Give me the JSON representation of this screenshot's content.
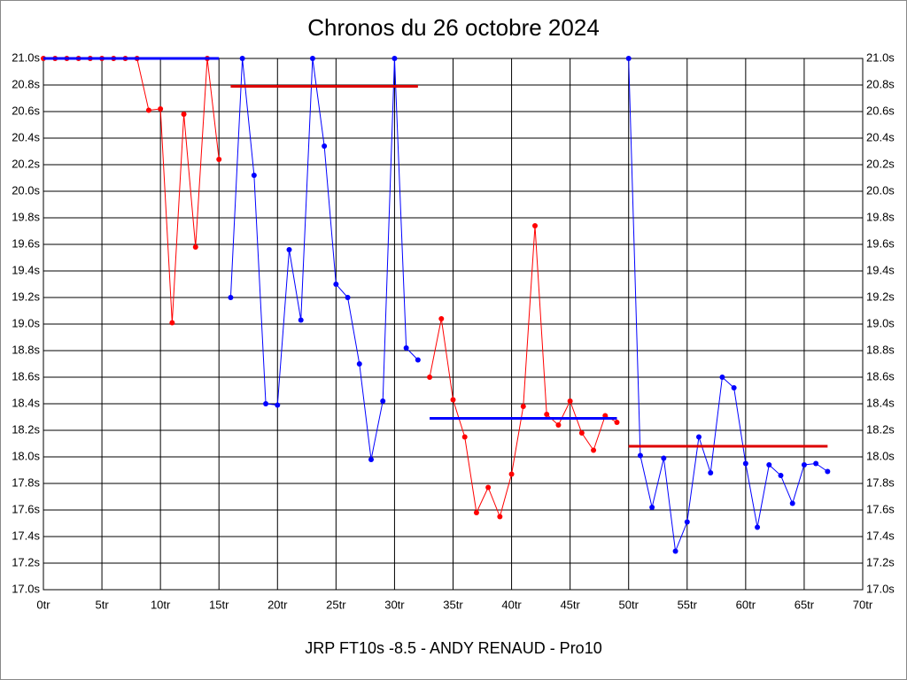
{
  "chart_data": {
    "type": "line",
    "title": "Chronos du 26 octobre 2024",
    "xlabel": "JRP FT10s -8.5 - ANDY RENAUD - Pro10",
    "xlim": [
      0,
      70
    ],
    "xticks": [
      {
        "value": 0,
        "label": "0tr"
      },
      {
        "value": 5,
        "label": "5tr"
      },
      {
        "value": 10,
        "label": "10tr"
      },
      {
        "value": 15,
        "label": "15tr"
      },
      {
        "value": 20,
        "label": "20tr"
      },
      {
        "value": 25,
        "label": "25tr"
      },
      {
        "value": 30,
        "label": "30tr"
      },
      {
        "value": 35,
        "label": "35tr"
      },
      {
        "value": 40,
        "label": "40tr"
      },
      {
        "value": 45,
        "label": "45tr"
      },
      {
        "value": 50,
        "label": "50tr"
      },
      {
        "value": 55,
        "label": "55tr"
      },
      {
        "value": 60,
        "label": "60tr"
      },
      {
        "value": 65,
        "label": "65tr"
      },
      {
        "value": 70,
        "label": "70tr"
      }
    ],
    "ylim": [
      17.0,
      21.0
    ],
    "yticks": [
      {
        "value": 17.0,
        "label": "17.0s"
      },
      {
        "value": 17.2,
        "label": "17.2s"
      },
      {
        "value": 17.4,
        "label": "17.4s"
      },
      {
        "value": 17.6,
        "label": "17.6s"
      },
      {
        "value": 17.8,
        "label": "17.8s"
      },
      {
        "value": 18.0,
        "label": "18.0s"
      },
      {
        "value": 18.2,
        "label": "18.2s"
      },
      {
        "value": 18.4,
        "label": "18.4s"
      },
      {
        "value": 18.6,
        "label": "18.6s"
      },
      {
        "value": 18.8,
        "label": "18.8s"
      },
      {
        "value": 19.0,
        "label": "19.0s"
      },
      {
        "value": 19.2,
        "label": "19.2s"
      },
      {
        "value": 19.4,
        "label": "19.4s"
      },
      {
        "value": 19.6,
        "label": "19.6s"
      },
      {
        "value": 19.8,
        "label": "19.8s"
      },
      {
        "value": 20.0,
        "label": "20.0s"
      },
      {
        "value": 20.2,
        "label": "20.2s"
      },
      {
        "value": 20.4,
        "label": "20.4s"
      },
      {
        "value": 20.6,
        "label": "20.6s"
      },
      {
        "value": 20.8,
        "label": "20.8s"
      },
      {
        "value": 21.0,
        "label": "21.0s"
      }
    ],
    "grid": true,
    "series": [
      {
        "color": "#ff0000",
        "x": [
          0,
          1,
          2,
          3,
          4,
          5,
          6,
          7,
          8,
          9,
          10,
          11,
          12,
          13,
          14,
          15
        ],
        "values": [
          21.0,
          21.0,
          21.0,
          21.0,
          21.0,
          21.0,
          21.0,
          21.0,
          21.0,
          20.61,
          20.62,
          19.01,
          20.58,
          19.58,
          21.0,
          20.24
        ]
      },
      {
        "color": "#0000ff",
        "x": [
          16,
          17,
          18,
          19,
          20,
          21,
          22,
          23,
          24,
          25,
          26,
          27,
          28,
          29,
          30,
          31,
          32
        ],
        "values": [
          19.2,
          21.0,
          20.12,
          18.4,
          18.39,
          19.56,
          19.03,
          21.0,
          20.34,
          19.3,
          19.2,
          18.7,
          17.98,
          18.42,
          21.0,
          18.82,
          18.73
        ]
      },
      {
        "color": "#ff0000",
        "x": [
          33,
          34,
          35,
          36,
          37,
          38,
          39,
          40,
          41,
          42,
          43,
          44,
          45,
          46,
          47,
          48,
          49
        ],
        "values": [
          18.6,
          19.04,
          18.43,
          18.15,
          17.58,
          17.77,
          17.55,
          17.87,
          18.38,
          19.74,
          18.32,
          18.24,
          18.42,
          18.18,
          18.05,
          18.31,
          18.26
        ]
      },
      {
        "color": "#0000ff",
        "x": [
          50,
          51,
          52,
          53,
          54,
          55,
          56,
          57,
          58,
          59,
          60,
          61,
          62,
          63,
          64,
          65,
          66,
          67
        ],
        "values": [
          21.0,
          18.01,
          17.62,
          17.99,
          17.29,
          17.51,
          18.15,
          17.88,
          18.6,
          18.52,
          17.95,
          17.47,
          17.94,
          17.86,
          17.65,
          17.94,
          17.95,
          17.89
        ]
      }
    ],
    "averages": [
      {
        "color": "#0000ff",
        "x": [
          0,
          15
        ],
        "value": 21.0
      },
      {
        "color": "#dd0000",
        "x": [
          16,
          32
        ],
        "value": 20.79
      },
      {
        "color": "#0000ff",
        "x": [
          33,
          49
        ],
        "value": 18.29
      },
      {
        "color": "#dd0000",
        "x": [
          50,
          67
        ],
        "value": 18.08
      }
    ]
  }
}
